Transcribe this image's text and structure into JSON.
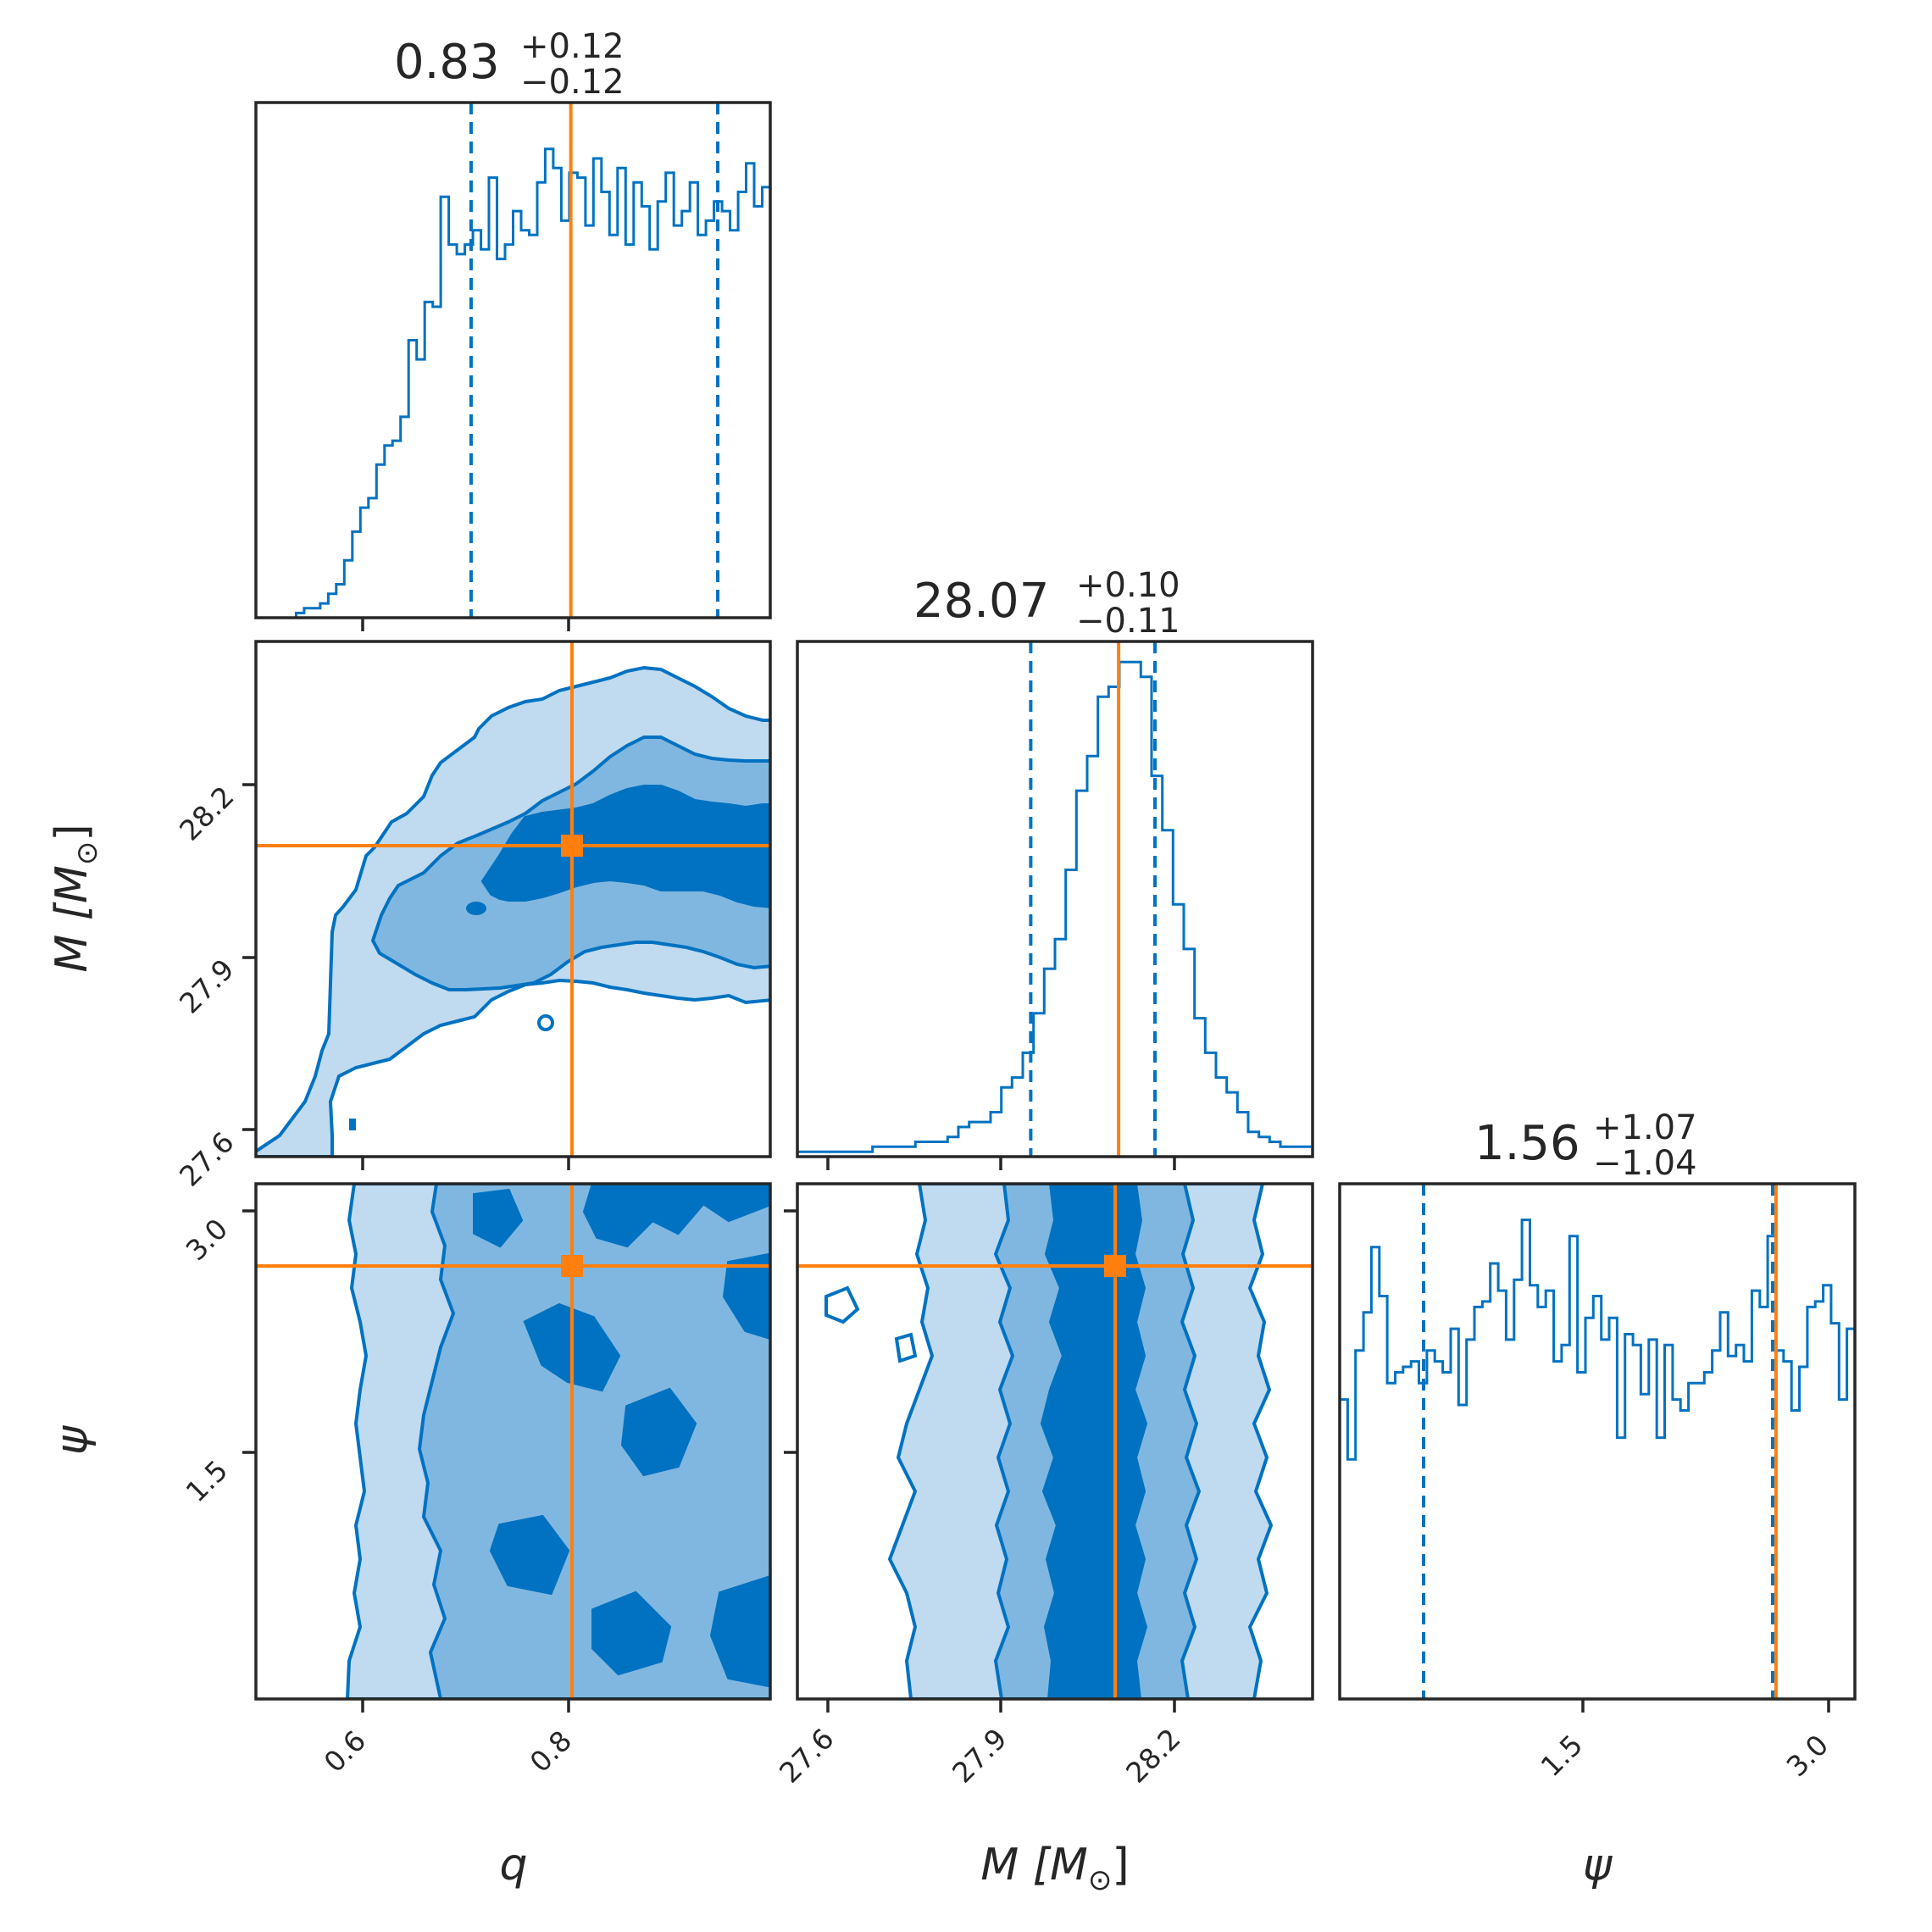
{
  "colors": {
    "main": "#0072C1",
    "truth": "#FF7F0E",
    "axes": "#262626",
    "fill1": "#C0DAEF",
    "fill2": "#80B7E0",
    "fill3": "#0072C1"
  },
  "chart_data": {
    "type": "corner",
    "parameters": [
      {
        "key": "q",
        "label": "q",
        "range": [
          0.5,
          0.99
        ],
        "ticks": [
          "0.6",
          "0.8"
        ],
        "tick_values": [
          0.6,
          0.8
        ],
        "title_median": "0.83",
        "title_plus": "+0.12",
        "title_minus": "−0.12",
        "median": 0.83,
        "plus": 0.12,
        "minus": 0.12,
        "quantiles": [
          0.705,
          0.94
        ],
        "truth": 0.8
      },
      {
        "key": "M",
        "label": "M [M",
        "label_sub": "⊙",
        "label_end": "]",
        "range": [
          27.57,
          28.42
        ],
        "ticks": [
          "27.6",
          "27.9",
          "28.2"
        ],
        "tick_values": [
          27.6,
          27.9,
          28.2
        ],
        "title_median": "28.07",
        "title_plus": "+0.10",
        "title_minus": "−0.11",
        "median": 28.07,
        "plus": 0.1,
        "minus": 0.11,
        "quantiles": [
          27.955,
          28.16
        ],
        "truth": 28.1
      },
      {
        "key": "psi",
        "label": "ψ",
        "range": [
          0.05,
          3.12
        ],
        "ticks": [
          "1.5",
          "3.0"
        ],
        "tick_values": [
          1.5,
          3.0
        ],
        "title_median": "1.56",
        "title_plus": "+1.07",
        "title_minus": "−1.04",
        "median": 1.56,
        "plus": 1.07,
        "minus": 1.04,
        "quantiles": [
          0.55,
          2.63
        ],
        "truth": 2.65
      }
    ],
    "histograms": {
      "q": [
        0.0,
        0.0,
        0.0,
        0.0,
        0.0,
        0.01,
        0.02,
        0.02,
        0.03,
        0.05,
        0.07,
        0.12,
        0.18,
        0.23,
        0.25,
        0.32,
        0.36,
        0.37,
        0.42,
        0.58,
        0.54,
        0.66,
        0.65,
        0.88,
        0.78,
        0.76,
        0.78,
        0.81,
        0.77,
        0.92,
        0.75,
        0.78,
        0.85,
        0.81,
        0.8,
        0.91,
        0.98,
        0.94,
        0.83,
        0.93,
        0.92,
        0.82,
        0.96,
        0.89,
        0.8,
        0.94,
        0.78,
        0.91,
        0.86,
        0.77,
        0.87,
        0.93,
        0.82,
        0.85,
        0.91,
        0.8,
        0.83,
        0.87,
        0.85,
        0.81,
        0.89,
        0.95,
        0.86,
        0.9
      ],
      "M": [
        0.01,
        0.01,
        0.01,
        0.01,
        0.01,
        0.01,
        0.01,
        0.02,
        0.02,
        0.02,
        0.02,
        0.03,
        0.03,
        0.03,
        0.04,
        0.06,
        0.07,
        0.07,
        0.09,
        0.14,
        0.16,
        0.21,
        0.29,
        0.38,
        0.44,
        0.58,
        0.74,
        0.81,
        0.93,
        0.95,
        1.0,
        1.0,
        0.97,
        0.77,
        0.66,
        0.51,
        0.42,
        0.28,
        0.21,
        0.16,
        0.13,
        0.09,
        0.05,
        0.04,
        0.03,
        0.02,
        0.02,
        0.02
      ],
      "psi": [
        0.55,
        0.44,
        0.64,
        0.71,
        0.83,
        0.74,
        0.58,
        0.6,
        0.61,
        0.62,
        0.58,
        0.64,
        0.62,
        0.6,
        0.68,
        0.54,
        0.66,
        0.72,
        0.73,
        0.8,
        0.75,
        0.66,
        0.77,
        0.88,
        0.76,
        0.72,
        0.75,
        0.62,
        0.65,
        0.85,
        0.6,
        0.7,
        0.74,
        0.66,
        0.7,
        0.48,
        0.67,
        0.65,
        0.56,
        0.66,
        0.48,
        0.65,
        0.55,
        0.53,
        0.58,
        0.58,
        0.6,
        0.64,
        0.71,
        0.63,
        0.65,
        0.62,
        0.75,
        0.72,
        0.85,
        0.64,
        0.62,
        0.53,
        0.61,
        0.72,
        0.73,
        0.76,
        0.69,
        0.55,
        0.68
      ]
    },
    "joint_peaks": {
      "M_vs_q": "28.10 at q ≥ 0.7",
      "psi_vs_q": "uniform in ψ, increasing with q",
      "psi_vs_M": "uniform in ψ, centered M = 28.07"
    },
    "contour_levels": [
      "1σ",
      "2σ",
      "3σ"
    ]
  }
}
